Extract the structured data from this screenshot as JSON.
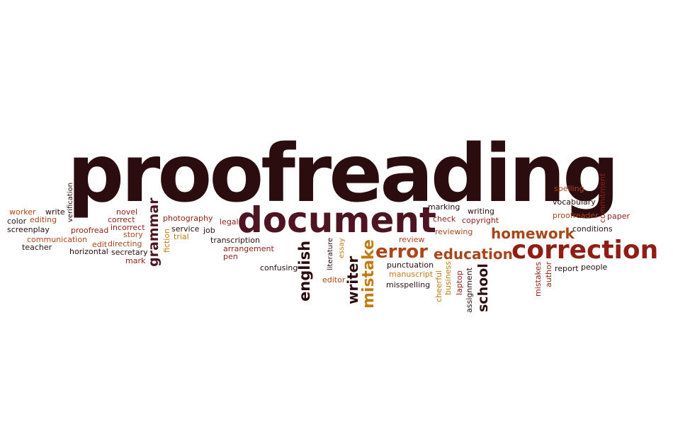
{
  "colors": {
    "dark": "#2b0d0f",
    "maroon": "#4d1421",
    "red": "#8f1f14",
    "brown": "#a8461a",
    "gold": "#c07c12"
  },
  "words": [
    {
      "id": "proofreading",
      "text": "proofreading",
      "color": "dark"
    },
    {
      "id": "document",
      "text": "document",
      "color": "maroon"
    },
    {
      "id": "correction",
      "text": "correction",
      "color": "red"
    },
    {
      "id": "error",
      "text": "error",
      "color": "brown"
    },
    {
      "id": "education",
      "text": "education",
      "color": "brown"
    },
    {
      "id": "homework",
      "text": "homework",
      "color": "brown"
    },
    {
      "id": "mistake",
      "text": "mistake",
      "color": "gold"
    },
    {
      "id": "writer",
      "text": "writer",
      "color": "dark"
    },
    {
      "id": "english",
      "text": "english",
      "color": "dark"
    },
    {
      "id": "school",
      "text": "school",
      "color": "dark"
    },
    {
      "id": "grammar",
      "text": "grammar",
      "color": "maroon"
    },
    {
      "id": "verification",
      "text": "verification",
      "color": "dark"
    },
    {
      "id": "worker",
      "text": "worker",
      "color": "brown"
    },
    {
      "id": "write",
      "text": "write",
      "color": "dark"
    },
    {
      "id": "color",
      "text": "color",
      "color": "dark"
    },
    {
      "id": "editing",
      "text": "editing",
      "color": "brown"
    },
    {
      "id": "screenplay",
      "text": "screenplay",
      "color": "dark"
    },
    {
      "id": "communication",
      "text": "communication",
      "color": "brown"
    },
    {
      "id": "teacher",
      "text": "teacher",
      "color": "dark"
    },
    {
      "id": "novel",
      "text": "novel",
      "color": "red"
    },
    {
      "id": "correct",
      "text": "correct",
      "color": "red"
    },
    {
      "id": "incorrect",
      "text": "incorrect",
      "color": "red"
    },
    {
      "id": "proofread",
      "text": "proofread",
      "color": "red"
    },
    {
      "id": "story",
      "text": "story",
      "color": "brown"
    },
    {
      "id": "edit",
      "text": "edit",
      "color": "brown"
    },
    {
      "id": "directing",
      "text": "directing",
      "color": "brown"
    },
    {
      "id": "horizontal",
      "text": "horizontal",
      "color": "dark"
    },
    {
      "id": "secretary",
      "text": "secretary",
      "color": "dark"
    },
    {
      "id": "mark",
      "text": "mark",
      "color": "red"
    },
    {
      "id": "photography",
      "text": "photography",
      "color": "red"
    },
    {
      "id": "service",
      "text": "service",
      "color": "dark"
    },
    {
      "id": "trial",
      "text": "trial",
      "color": "gold"
    },
    {
      "id": "fiction",
      "text": "fiction",
      "color": "gold"
    },
    {
      "id": "job",
      "text": "job",
      "color": "dark"
    },
    {
      "id": "legal",
      "text": "legal",
      "color": "red"
    },
    {
      "id": "transcription",
      "text": "transcription",
      "color": "dark"
    },
    {
      "id": "arrangement",
      "text": "arrangement",
      "color": "red"
    },
    {
      "id": "pen",
      "text": "pen",
      "color": "red"
    },
    {
      "id": "confusing",
      "text": "confusing",
      "color": "dark"
    },
    {
      "id": "literature",
      "text": "literature",
      "color": "dark"
    },
    {
      "id": "essay",
      "text": "essay",
      "color": "gold"
    },
    {
      "id": "editor",
      "text": "editor",
      "color": "brown"
    },
    {
      "id": "review",
      "text": "review",
      "color": "brown"
    },
    {
      "id": "marking",
      "text": "marking",
      "color": "dark"
    },
    {
      "id": "check",
      "text": "check",
      "color": "red"
    },
    {
      "id": "reviewing",
      "text": "reviewing",
      "color": "brown"
    },
    {
      "id": "writing",
      "text": "writing",
      "color": "dark"
    },
    {
      "id": "copyright",
      "text": "copyright",
      "color": "red"
    },
    {
      "id": "punctuation",
      "text": "punctuation",
      "color": "dark"
    },
    {
      "id": "manuscript",
      "text": "manuscript",
      "color": "gold"
    },
    {
      "id": "misspelling",
      "text": "misspelling",
      "color": "dark"
    },
    {
      "id": "cheerful",
      "text": "cheerful",
      "color": "gold"
    },
    {
      "id": "business",
      "text": "business",
      "color": "gold"
    },
    {
      "id": "laptop",
      "text": "laptop",
      "color": "red"
    },
    {
      "id": "assignment",
      "text": "assignment",
      "color": "dark"
    },
    {
      "id": "spelling",
      "text": "spelling",
      "color": "brown"
    },
    {
      "id": "vocabulary",
      "text": "vocabulary",
      "color": "dark"
    },
    {
      "id": "commitment",
      "text": "commitment",
      "color": "red"
    },
    {
      "id": "proofreader",
      "text": "proofreader",
      "color": "brown"
    },
    {
      "id": "paper",
      "text": "paper",
      "color": "red"
    },
    {
      "id": "conditions",
      "text": "conditions",
      "color": "dark"
    },
    {
      "id": "mistakes",
      "text": "mistakes",
      "color": "red"
    },
    {
      "id": "author",
      "text": "author",
      "color": "red"
    },
    {
      "id": "report",
      "text": "report",
      "color": "dark"
    },
    {
      "id": "people",
      "text": "people",
      "color": "dark"
    }
  ]
}
